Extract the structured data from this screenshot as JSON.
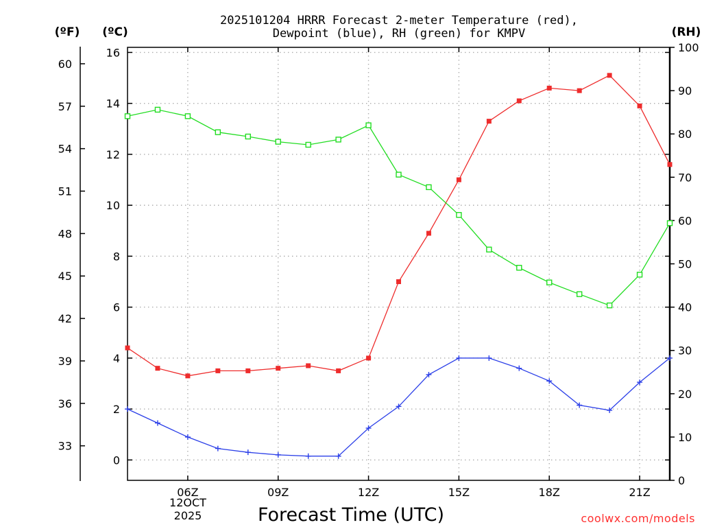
{
  "chart_data": {
    "type": "line",
    "title": "2025101204 HRRR Forecast 2-meter Temperature (red),",
    "subtitle": "Dewpoint (blue), RH (green) for KMPV",
    "xlabel": "Forecast Time (UTC)",
    "credit": "coolwx.com/models",
    "units": {
      "fahrenheit": "(ºF)",
      "celsius": "(ºC)",
      "rh": "(RH)"
    },
    "x_hours": [
      4,
      5,
      6,
      7,
      8,
      9,
      10,
      11,
      12,
      13,
      14,
      15,
      16,
      17,
      18,
      19,
      20,
      21,
      22
    ],
    "xlim": [
      4,
      22
    ],
    "x_ticks": [
      {
        "hour": 6,
        "label": "06Z"
      },
      {
        "hour": 9,
        "label": "09Z"
      },
      {
        "hour": 12,
        "label": "12Z"
      },
      {
        "hour": 15,
        "label": "15Z"
      },
      {
        "hour": 18,
        "label": "18Z"
      },
      {
        "hour": 21,
        "label": "21Z"
      }
    ],
    "date_label": [
      "12OCT",
      "2025"
    ],
    "ylim_celsius": [
      -0.8,
      16.2
    ],
    "y_ticks_celsius": [
      "0",
      "2",
      "4",
      "6",
      "8",
      "10",
      "12",
      "14",
      "16"
    ],
    "y_ticks_fahrenheit": [
      "33",
      "36",
      "39",
      "42",
      "45",
      "48",
      "51",
      "54",
      "57",
      "60"
    ],
    "ylim_rh": [
      0,
      100
    ],
    "y_ticks_rh": [
      "0",
      "10",
      "20",
      "30",
      "40",
      "50",
      "60",
      "70",
      "80",
      "90",
      "100"
    ],
    "series": [
      {
        "name": "Temperature",
        "axis": "celsius",
        "color": "#ee2c2c",
        "marker": "filled-square",
        "values": [
          4.4,
          3.6,
          3.3,
          3.5,
          3.5,
          3.6,
          3.7,
          3.5,
          4.0,
          7.0,
          8.9,
          11.0,
          13.3,
          14.1,
          14.6,
          14.5,
          15.1,
          13.9,
          11.6
        ]
      },
      {
        "name": "Dewpoint",
        "axis": "celsius",
        "color": "#2b3fe8",
        "marker": "plus",
        "values": [
          2.0,
          1.45,
          0.9,
          0.45,
          0.3,
          0.2,
          0.15,
          0.15,
          1.25,
          2.1,
          3.35,
          4.0,
          4.0,
          3.6,
          3.1,
          2.15,
          1.95,
          3.05,
          4.0
        ]
      },
      {
        "name": "RH",
        "axis": "rh",
        "color": "#22dd22",
        "marker": "open-square",
        "values": [
          84.1,
          85.6,
          84.1,
          80.4,
          79.4,
          78.2,
          77.5,
          78.7,
          82.0,
          70.6,
          67.7,
          61.3,
          53.3,
          49.1,
          45.7,
          43.0,
          40.4,
          47.5,
          59.4
        ]
      }
    ]
  }
}
